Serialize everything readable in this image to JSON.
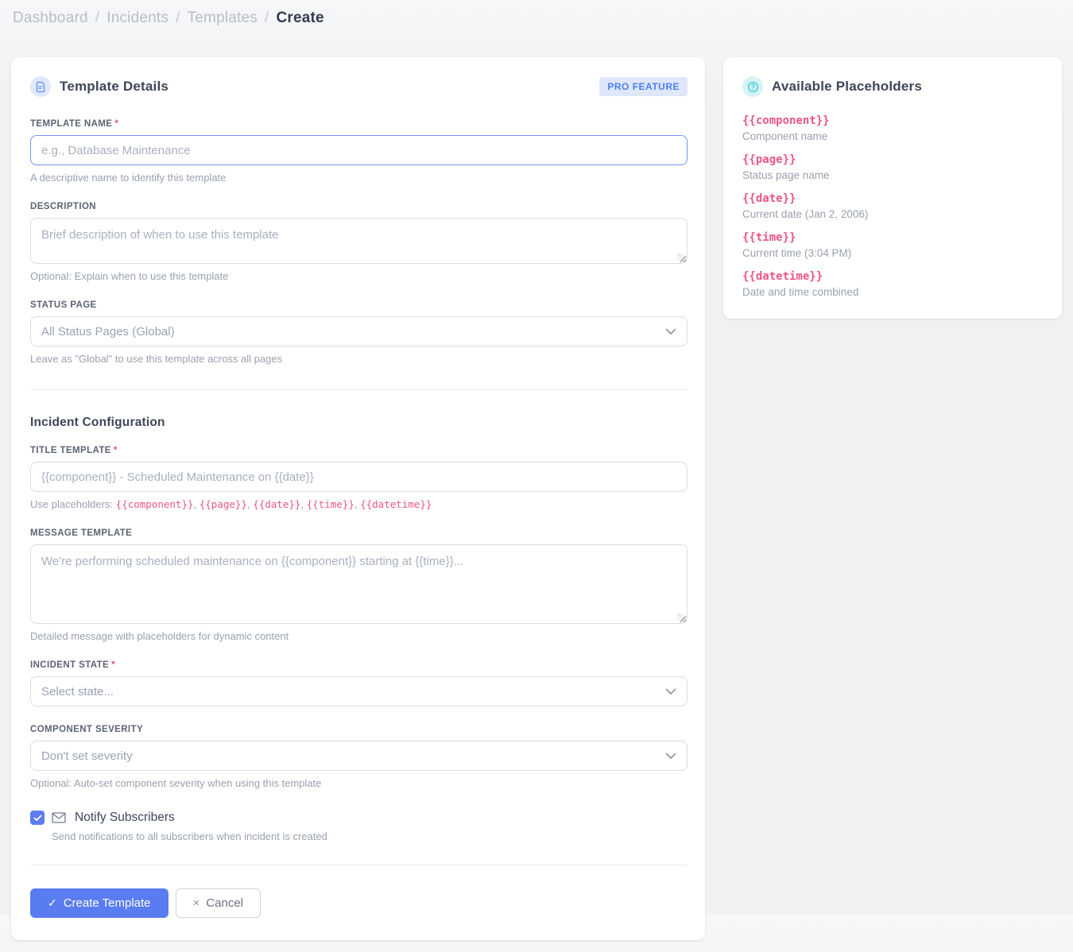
{
  "breadcrumb": {
    "items": [
      "Dashboard",
      "Incidents",
      "Templates"
    ],
    "separator": "/",
    "current": "Create"
  },
  "template_card": {
    "title": "Template Details",
    "badge": "PRO FEATURE",
    "template_name": {
      "label": "TEMPLATE NAME",
      "required_mark": "*",
      "placeholder": "e.g., Database Maintenance",
      "help": "A descriptive name to identify this template"
    },
    "description": {
      "label": "DESCRIPTION",
      "placeholder": "Brief description of when to use this template",
      "help": "Optional: Explain when to use this template"
    },
    "status_page": {
      "label": "STATUS PAGE",
      "value": "All Status Pages (Global)",
      "help": "Leave as \"Global\" to use this template across all pages"
    }
  },
  "incident_config": {
    "section_title": "Incident Configuration",
    "title_template": {
      "label": "TITLE TEMPLATE",
      "required_mark": "*",
      "placeholder": "{{component}} - Scheduled Maintenance on {{date}}",
      "help_prefix": "Use placeholders: ",
      "tokens": [
        "{{component}}",
        "{{page}}",
        "{{date}}",
        "{{time}}",
        "{{datetime}}"
      ],
      "token_separator": ", "
    },
    "message_template": {
      "label": "MESSAGE TEMPLATE",
      "placeholder": "We're performing scheduled maintenance on {{component}} starting at {{time}}...",
      "help": "Detailed message with placeholders for dynamic content"
    },
    "incident_state": {
      "label": "INCIDENT STATE",
      "required_mark": "*",
      "value": "Select state..."
    },
    "component_severity": {
      "label": "COMPONENT SEVERITY",
      "value": "Don't set severity",
      "help": "Optional: Auto-set component severity when using this template"
    },
    "notify_subscribers": {
      "checked": true,
      "label": "Notify Subscribers",
      "help": "Send notifications to all subscribers when incident is created"
    }
  },
  "actions": {
    "create_icon": "✓",
    "create_label": "Create Template",
    "cancel_icon": "×",
    "cancel_label": "Cancel"
  },
  "placeholders_panel": {
    "title": "Available Placeholders",
    "items": [
      {
        "token": "{{component}}",
        "description": "Component name"
      },
      {
        "token": "{{page}}",
        "description": "Status page name"
      },
      {
        "token": "{{date}}",
        "description": "Current date (Jan 2, 2006)"
      },
      {
        "token": "{{time}}",
        "description": "Current time (3:04 PM)"
      },
      {
        "token": "{{datetime}}",
        "description": "Date and time combined"
      }
    ]
  },
  "colors": {
    "accent_blue": "#597cf1",
    "badge_bg": "#dfe7fb",
    "badge_text": "#4d7df2",
    "pink_code": "#ec5587",
    "teal_icon": "#2bc3cf",
    "required_red": "#e8505b"
  }
}
